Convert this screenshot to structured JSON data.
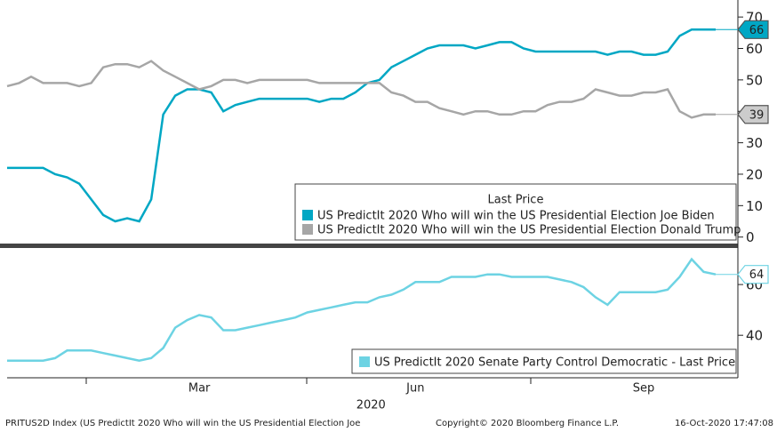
{
  "chart_data": [
    {
      "type": "line",
      "legend_title": "Last Price",
      "ylim": [
        -1.5,
        74
      ],
      "yticks": [
        0,
        10,
        20,
        30,
        40,
        50,
        60,
        70
      ],
      "series": [
        {
          "name": "US PredictIt 2020 Who will win the US Presidential Election Joe Biden",
          "color": "#00a7c4",
          "values": [
            22,
            22,
            22,
            22,
            20,
            19,
            17,
            12,
            7,
            5,
            6,
            5,
            12,
            39,
            45,
            47,
            47,
            46,
            40,
            42,
            43,
            44,
            44,
            44,
            44,
            44,
            43,
            44,
            44,
            46,
            49,
            50,
            54,
            56,
            58,
            60,
            61,
            61,
            61,
            60,
            61,
            62,
            62,
            60,
            59,
            59,
            59,
            59,
            59,
            59,
            58,
            59,
            59,
            58,
            58,
            59,
            64,
            66,
            66,
            66
          ]
        },
        {
          "name": "US PredictIt 2020 Who will win the US Presidential Election Donald Trump",
          "color": "#a6a6a6",
          "values": [
            48,
            49,
            51,
            49,
            49,
            49,
            48,
            49,
            54,
            55,
            55,
            54,
            56,
            53,
            51,
            49,
            47,
            48,
            50,
            50,
            49,
            50,
            50,
            50,
            50,
            50,
            49,
            49,
            49,
            49,
            49,
            49,
            46,
            45,
            43,
            43,
            41,
            40,
            39,
            40,
            40,
            39,
            39,
            40,
            40,
            42,
            43,
            43,
            44,
            47,
            46,
            45,
            45,
            46,
            46,
            47,
            40,
            38,
            39,
            39
          ]
        }
      ]
    },
    {
      "type": "line",
      "ylim": [
        25,
        73
      ],
      "yticks": [
        40,
        60
      ],
      "year_label": "2020",
      "categories": [
        null,
        null,
        null,
        null,
        null,
        null,
        null,
        null,
        null,
        null,
        null,
        null,
        null,
        null,
        null,
        null,
        "Mar",
        null,
        null,
        null,
        null,
        null,
        null,
        null,
        null,
        null,
        null,
        null,
        null,
        null,
        null,
        null,
        null,
        null,
        "Jun",
        null,
        null,
        null,
        null,
        null,
        null,
        null,
        null,
        null,
        null,
        null,
        null,
        null,
        null,
        null,
        null,
        null,
        null,
        "Sep",
        null,
        null,
        null,
        null,
        null,
        null
      ],
      "series": [
        {
          "name": "US PredictIt 2020 Senate Party Control Democratic - Last Price",
          "color": "#6dd3e3",
          "values": [
            30,
            30,
            30,
            30,
            31,
            34,
            34,
            34,
            33,
            32,
            31,
            30,
            31,
            35,
            43,
            46,
            48,
            47,
            42,
            42,
            43,
            44,
            45,
            46,
            47,
            49,
            50,
            51,
            52,
            53,
            53,
            55,
            56,
            58,
            61,
            61,
            61,
            63,
            63,
            63,
            64,
            64,
            63,
            63,
            63,
            63,
            62,
            61,
            59,
            55,
            52,
            57,
            57,
            57,
            57,
            58,
            63,
            70,
            65,
            64
          ]
        }
      ]
    }
  ],
  "footer": {
    "left": "PRITUS2D Index (US PredictIt 2020 Who will win the US Presidential Election Joe",
    "center": "Copyright© 2020 Bloomberg Finance L.P.",
    "right": "16-Oct-2020 17:47:08"
  }
}
